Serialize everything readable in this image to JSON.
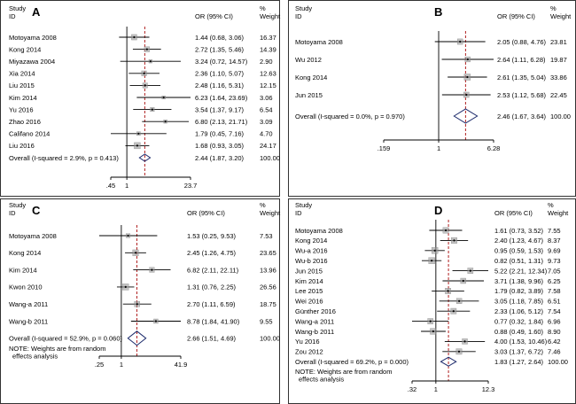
{
  "chart_data": [
    {
      "type": "forest",
      "panel": "A",
      "header": {
        "study": "Study",
        "id": "ID",
        "or": "OR (95% CI)",
        "pct": "%",
        "weight": "Weight"
      },
      "axis": {
        "ticks": [
          0.45,
          1,
          23.7
        ],
        "tick_labels": [
          ".45",
          "1",
          "23.7"
        ],
        "log": true
      },
      "null_line": 1,
      "pooled_line": 2.44,
      "studies": [
        {
          "name": "Motoyama 2008",
          "or": 1.44,
          "lo": 0.68,
          "hi": 3.06,
          "ci_text": "1.44 (0.68, 3.06)",
          "weight": "16.37"
        },
        {
          "name": "Kong 2014",
          "or": 2.72,
          "lo": 1.35,
          "hi": 5.46,
          "ci_text": "2.72 (1.35, 5.46)",
          "weight": "14.39"
        },
        {
          "name": "Miyazawa 2004",
          "or": 3.24,
          "lo": 0.72,
          "hi": 14.57,
          "ci_text": "3.24 (0.72, 14.57)",
          "weight": "2.90"
        },
        {
          "name": "Xia 2014",
          "or": 2.36,
          "lo": 1.1,
          "hi": 5.07,
          "ci_text": "2.36 (1.10, 5.07)",
          "weight": "12.63"
        },
        {
          "name": "Liu 2015",
          "or": 2.48,
          "lo": 1.16,
          "hi": 5.31,
          "ci_text": "2.48 (1.16, 5.31)",
          "weight": "12.15"
        },
        {
          "name": "Kim 2014",
          "or": 6.23,
          "lo": 1.64,
          "hi": 23.69,
          "ci_text": "6.23 (1.64, 23.69)",
          "weight": "3.06"
        },
        {
          "name": "Yu 2016",
          "or": 3.54,
          "lo": 1.37,
          "hi": 9.17,
          "ci_text": "3.54 (1.37, 9.17)",
          "weight": "6.54"
        },
        {
          "name": "Zhao 2016",
          "or": 6.8,
          "lo": 2.13,
          "hi": 21.71,
          "ci_text": "6.80 (2.13, 21.71)",
          "weight": "3.09"
        },
        {
          "name": "Califano 2014",
          "or": 1.79,
          "lo": 0.45,
          "hi": 7.16,
          "ci_text": "1.79 (0.45, 7.16)",
          "weight": "4.70"
        },
        {
          "name": "Liu 2016",
          "or": 1.68,
          "lo": 0.93,
          "hi": 3.05,
          "ci_text": "1.68 (0.93, 3.05)",
          "weight": "24.17"
        }
      ],
      "overall": {
        "label": "Overall (I-squared = 2.9%, p = 0.413)",
        "or": 2.44,
        "lo": 1.87,
        "hi": 3.2,
        "ci_text": "2.44 (1.87, 3.20)",
        "weight": "100.00"
      },
      "notes": []
    },
    {
      "type": "forest",
      "panel": "B",
      "header": {
        "study": "Study",
        "id": "ID",
        "or": "OR (95% CI)",
        "pct": "%",
        "weight": "Weight"
      },
      "axis": {
        "ticks": [
          0.159,
          1,
          6.28
        ],
        "tick_labels": [
          ".159",
          "1",
          "6.28"
        ],
        "log": true
      },
      "null_line": 1,
      "pooled_line": 2.46,
      "studies": [
        {
          "name": "Motoyama 2008",
          "or": 2.05,
          "lo": 0.88,
          "hi": 4.76,
          "ci_text": "2.05 (0.88, 4.76)",
          "weight": "23.81"
        },
        {
          "name": "Wu 2012",
          "or": 2.64,
          "lo": 1.11,
          "hi": 6.28,
          "ci_text": "2.64 (1.11, 6.28)",
          "weight": "19.87"
        },
        {
          "name": "Kong 2014",
          "or": 2.61,
          "lo": 1.35,
          "hi": 5.04,
          "ci_text": "2.61 (1.35, 5.04)",
          "weight": "33.86"
        },
        {
          "name": "Jun 2015",
          "or": 2.53,
          "lo": 1.12,
          "hi": 5.68,
          "ci_text": "2.53 (1.12, 5.68)",
          "weight": "22.45"
        }
      ],
      "overall": {
        "label": "Overall (I-squared = 0.0%, p = 0.970)",
        "or": 2.46,
        "lo": 1.67,
        "hi": 3.64,
        "ci_text": "2.46 (1.67, 3.64)",
        "weight": "100.00"
      },
      "notes": []
    },
    {
      "type": "forest",
      "panel": "C",
      "header": {
        "study": "Study",
        "id": "ID",
        "or": "OR (95% CI)",
        "pct": "%",
        "weight": "Weight"
      },
      "axis": {
        "ticks": [
          0.25,
          1,
          41.9
        ],
        "tick_labels": [
          ".25",
          "1",
          "41.9"
        ],
        "log": true
      },
      "null_line": 1,
      "pooled_line": 2.66,
      "studies": [
        {
          "name": "Motoyama 2008",
          "or": 1.53,
          "lo": 0.25,
          "hi": 9.53,
          "ci_text": "1.53 (0.25, 9.53)",
          "weight": "7.53"
        },
        {
          "name": "Kong 2014",
          "or": 2.45,
          "lo": 1.26,
          "hi": 4.75,
          "ci_text": "2.45 (1.26, 4.75)",
          "weight": "23.65"
        },
        {
          "name": "Kim 2014",
          "or": 6.82,
          "lo": 2.11,
          "hi": 22.11,
          "ci_text": "6.82 (2.11, 22.11)",
          "weight": "13.96"
        },
        {
          "name": "Kwon 2010",
          "or": 1.31,
          "lo": 0.76,
          "hi": 2.25,
          "ci_text": "1.31 (0.76, 2.25)",
          "weight": "26.56"
        },
        {
          "name": "Wang-a 2011",
          "or": 2.7,
          "lo": 1.11,
          "hi": 6.59,
          "ci_text": "2.70 (1.11, 6.59)",
          "weight": "18.75"
        },
        {
          "name": "Wang-b 2011",
          "or": 8.78,
          "lo": 1.84,
          "hi": 41.9,
          "ci_text": "8.78 (1.84, 41.90)",
          "weight": "9.55"
        }
      ],
      "overall": {
        "label": "Overall (I-squared = 52.9%, p = 0.060)",
        "or": 2.66,
        "lo": 1.51,
        "hi": 4.69,
        "ci_text": "2.66 (1.51, 4.69)",
        "weight": "100.00"
      },
      "notes": [
        "NOTE: Weights are from random",
        "effects analysis"
      ]
    },
    {
      "type": "forest",
      "panel": "D",
      "header": {
        "study": "Study",
        "id": "ID",
        "or": "OR (95% CI)",
        "pct": "%",
        "weight": "Weight"
      },
      "axis": {
        "ticks": [
          0.32,
          1,
          12.3
        ],
        "tick_labels": [
          ".32",
          "1",
          "12.3"
        ],
        "log": true
      },
      "null_line": 1,
      "pooled_line": 1.83,
      "studies": [
        {
          "name": "Motoyama 2008",
          "or": 1.61,
          "lo": 0.73,
          "hi": 3.52,
          "ci_text": "1.61 (0.73, 3.52)",
          "weight": "7.55"
        },
        {
          "name": "Kong 2014",
          "or": 2.4,
          "lo": 1.23,
          "hi": 4.67,
          "ci_text": "2.40 (1.23, 4.67)",
          "weight": "8.37"
        },
        {
          "name": "Wu-a 2016",
          "or": 0.95,
          "lo": 0.59,
          "hi": 1.53,
          "ci_text": "0.95 (0.59, 1.53)",
          "weight": "9.69"
        },
        {
          "name": "Wu-b 2016",
          "or": 0.82,
          "lo": 0.51,
          "hi": 1.31,
          "ci_text": "0.82 (0.51, 1.31)",
          "weight": "9.73"
        },
        {
          "name": "Jun 2015",
          "or": 5.22,
          "lo": 2.21,
          "hi": 12.34,
          "ci_text": "5.22 (2.21, 12.34)",
          "weight": "7.05"
        },
        {
          "name": "Kim 2014",
          "or": 3.71,
          "lo": 1.38,
          "hi": 9.96,
          "ci_text": "3.71 (1.38, 9.96)",
          "weight": "6.25"
        },
        {
          "name": "Lee 2015",
          "or": 1.79,
          "lo": 0.82,
          "hi": 3.89,
          "ci_text": "1.79 (0.82, 3.89)",
          "weight": "7.58"
        },
        {
          "name": "Wei 2016",
          "or": 3.05,
          "lo": 1.18,
          "hi": 7.85,
          "ci_text": "3.05 (1.18, 7.85)",
          "weight": "6.51"
        },
        {
          "name": "Günther 2016",
          "or": 2.33,
          "lo": 1.06,
          "hi": 5.12,
          "ci_text": "2.33 (1.06, 5.12)",
          "weight": "7.54"
        },
        {
          "name": "Wang-a 2011",
          "or": 0.77,
          "lo": 0.32,
          "hi": 1.84,
          "ci_text": "0.77 (0.32, 1.84)",
          "weight": "6.96"
        },
        {
          "name": "Wang-b 2011",
          "or": 0.88,
          "lo": 0.49,
          "hi": 1.6,
          "ci_text": "0.88 (0.49, 1.60)",
          "weight": "8.90"
        },
        {
          "name": "Yu 2016",
          "or": 4.0,
          "lo": 1.53,
          "hi": 10.46,
          "ci_text": "4.00 (1.53, 10.46)",
          "weight": "6.42"
        },
        {
          "name": "Zou 2012",
          "or": 3.03,
          "lo": 1.37,
          "hi": 6.72,
          "ci_text": "3.03 (1.37, 6.72)",
          "weight": "7.46"
        }
      ],
      "overall": {
        "label": "Overall (I-squared = 69.2%, p = 0.000)",
        "or": 1.83,
        "lo": 1.27,
        "hi": 2.64,
        "ci_text": "1.83 (1.27, 2.64)",
        "weight": "100.00"
      },
      "notes": [
        "NOTE: Weights are from random",
        "effects analysis"
      ]
    }
  ],
  "colors": {
    "line": "#000000",
    "box": "#9a9a9a",
    "diamond": "#1c2a6b",
    "pooled_line": "#b02020"
  }
}
